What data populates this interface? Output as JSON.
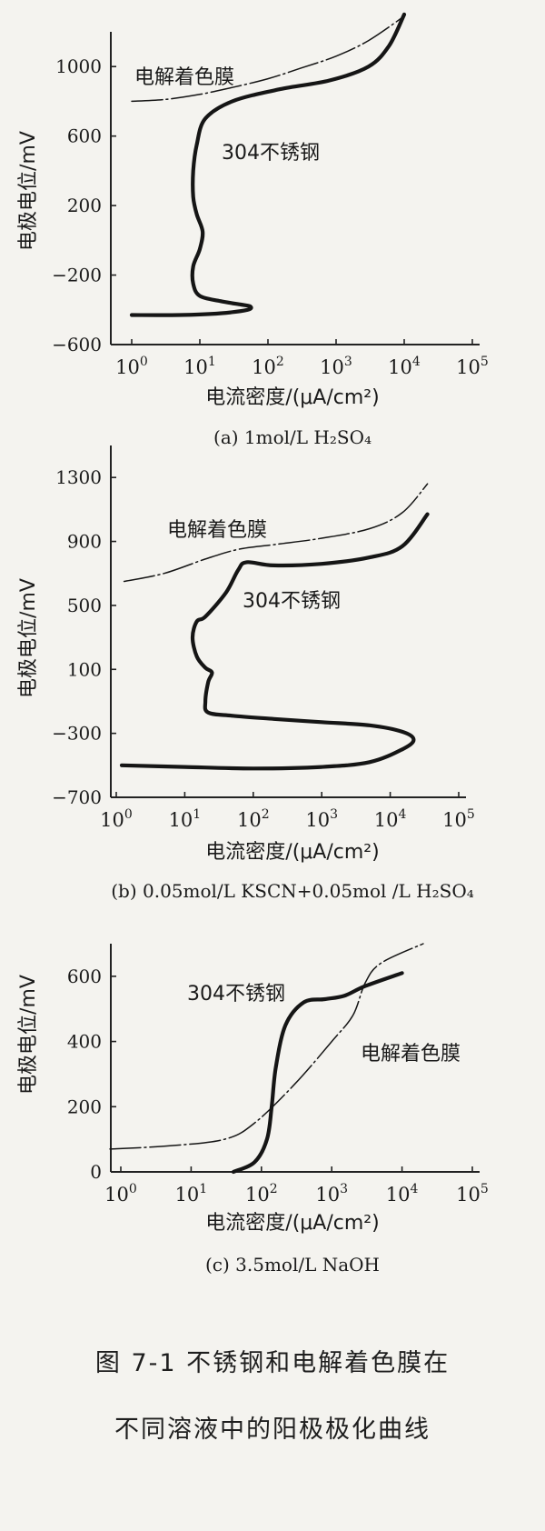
{
  "figure": {
    "caption_line1": "图 7-1   不锈钢和电解着色膜在",
    "caption_line2": "不同溶液中的阳极极化曲线"
  },
  "chart_data": [
    {
      "type": "line",
      "panel_label": "(a) 1mol/L H₂SO₄",
      "xlabel": "电流密度/(μA/cm²)",
      "ylabel": "电极电位/mV",
      "xscale": "log",
      "xlim": [
        1,
        100000
      ],
      "ylim": [
        -600,
        1200
      ],
      "xticks": [
        1,
        10,
        100,
        1000,
        10000,
        100000
      ],
      "xtick_labels": [
        "10⁰",
        "10¹",
        "10²",
        "10³",
        "10⁴",
        "10⁵"
      ],
      "yticks": [
        -600,
        -200,
        200,
        600,
        1000
      ],
      "ytick_labels": [
        "−600",
        "−200",
        "200",
        "600",
        "1000"
      ],
      "grid": false,
      "series": [
        {
          "name": "电解着色膜",
          "style": "thin",
          "points": [
            [
              1,
              800
            ],
            [
              3,
              810
            ],
            [
              10,
              840
            ],
            [
              30,
              880
            ],
            [
              100,
              930
            ],
            [
              300,
              990
            ],
            [
              1000,
              1060
            ],
            [
              3000,
              1150
            ],
            [
              10000,
              1290
            ]
          ]
        },
        {
          "name": "304不锈钢",
          "style": "thick",
          "points": [
            [
              1,
              -430
            ],
            [
              5,
              -430
            ],
            [
              20,
              -420
            ],
            [
              50,
              -400
            ],
            [
              55,
              -380
            ],
            [
              40,
              -370
            ],
            [
              20,
              -350
            ],
            [
              10,
              -320
            ],
            [
              8,
              -250
            ],
            [
              8,
              -150
            ],
            [
              10,
              -50
            ],
            [
              11,
              50
            ],
            [
              9,
              150
            ],
            [
              8,
              250
            ],
            [
              8,
              400
            ],
            [
              9,
              550
            ],
            [
              12,
              700
            ],
            [
              30,
              800
            ],
            [
              150,
              870
            ],
            [
              800,
              920
            ],
            [
              3000,
              1000
            ],
            [
              6000,
              1120
            ],
            [
              10000,
              1300
            ]
          ]
        }
      ]
    },
    {
      "type": "line",
      "panel_label": "(b) 0.05mol/L KSCN+0.05mol /L H₂SO₄",
      "xlabel": "电流密度/(μA/cm²)",
      "ylabel": "电极电位/mV",
      "xscale": "log",
      "xlim": [
        1,
        100000
      ],
      "ylim": [
        -700,
        1500
      ],
      "xticks": [
        1,
        10,
        100,
        1000,
        10000,
        100000
      ],
      "xtick_labels": [
        "10⁰",
        "10¹",
        "10²",
        "10³",
        "10⁴",
        "10⁵"
      ],
      "yticks": [
        -700,
        -300,
        100,
        500,
        900,
        1300
      ],
      "ytick_labels": [
        "−700",
        "−300",
        "100",
        "500",
        "900",
        "1300"
      ],
      "grid": false,
      "series": [
        {
          "name": "电解着色膜",
          "style": "thin",
          "points": [
            [
              1.3,
              650
            ],
            [
              5,
              700
            ],
            [
              20,
              790
            ],
            [
              60,
              850
            ],
            [
              200,
              880
            ],
            [
              1000,
              920
            ],
            [
              5000,
              980
            ],
            [
              15000,
              1080
            ],
            [
              35000,
              1260
            ]
          ]
        },
        {
          "name": "304不锈钢",
          "style": "thick",
          "points": [
            [
              1.2,
              -500
            ],
            [
              10,
              -510
            ],
            [
              100,
              -520
            ],
            [
              1000,
              -510
            ],
            [
              5000,
              -480
            ],
            [
              15000,
              -400
            ],
            [
              22000,
              -340
            ],
            [
              15000,
              -290
            ],
            [
              5000,
              -250
            ],
            [
              1000,
              -230
            ],
            [
              200,
              -210
            ],
            [
              50,
              -190
            ],
            [
              22,
              -170
            ],
            [
              20,
              -100
            ],
            [
              22,
              20
            ],
            [
              25,
              80
            ],
            [
              20,
              110
            ],
            [
              15,
              180
            ],
            [
              13,
              300
            ],
            [
              15,
              400
            ],
            [
              20,
              430
            ],
            [
              40,
              580
            ],
            [
              60,
              720
            ],
            [
              80,
              770
            ],
            [
              200,
              750
            ],
            [
              1000,
              760
            ],
            [
              5000,
              800
            ],
            [
              15000,
              870
            ],
            [
              35000,
              1070
            ]
          ]
        }
      ]
    },
    {
      "type": "line",
      "panel_label": "(c) 3.5mol/L NaOH",
      "xlabel": "电流密度/(μA/cm²)",
      "ylabel": "电极电位/mV",
      "xscale": "log",
      "xlim": [
        1,
        100000
      ],
      "ylim": [
        0,
        700
      ],
      "xticks": [
        1,
        10,
        100,
        1000,
        10000,
        100000
      ],
      "xtick_labels": [
        "10⁰",
        "10¹",
        "10²",
        "10³",
        "10⁴",
        "10⁵"
      ],
      "yticks": [
        0,
        200,
        400,
        600
      ],
      "ytick_labels": [
        "0",
        "200",
        "400",
        "600"
      ],
      "grid": false,
      "series": [
        {
          "name": "304不锈钢",
          "style": "thick",
          "points": [
            [
              40,
              0
            ],
            [
              80,
              30
            ],
            [
              120,
              100
            ],
            [
              140,
              200
            ],
            [
              160,
              320
            ],
            [
              220,
              450
            ],
            [
              400,
              520
            ],
            [
              800,
              530
            ],
            [
              1500,
              540
            ],
            [
              3000,
              570
            ],
            [
              10000,
              610
            ]
          ]
        },
        {
          "name": "电解着色膜",
          "style": "thin",
          "points": [
            [
              0.7,
              70
            ],
            [
              5,
              80
            ],
            [
              30,
              100
            ],
            [
              80,
              150
            ],
            [
              300,
              270
            ],
            [
              1000,
              400
            ],
            [
              2000,
              480
            ],
            [
              3000,
              580
            ],
            [
              5000,
              640
            ],
            [
              20000,
              700
            ]
          ]
        }
      ]
    }
  ]
}
